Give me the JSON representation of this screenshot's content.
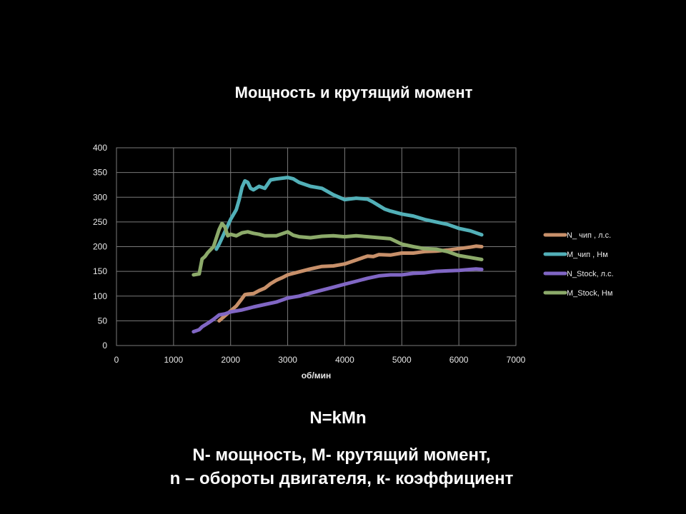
{
  "title": "Мощность и крутящий момент",
  "formula": "N=kMn",
  "description_line1": "N- мощность, M- крутящий момент,",
  "description_line2": "n – обороты двигателя, к- коэффициент",
  "chart_data": {
    "type": "line",
    "title": "",
    "xlabel": "об/мин",
    "ylabel": "",
    "xlim": [
      0,
      7000
    ],
    "ylim": [
      0,
      400
    ],
    "xticks": [
      0,
      1000,
      2000,
      3000,
      4000,
      5000,
      6000,
      7000
    ],
    "yticks": [
      0,
      50,
      100,
      150,
      200,
      250,
      300,
      350,
      400
    ],
    "grid": true,
    "legend_position": "right",
    "series": [
      {
        "name": "N_ чип , л.с.",
        "color": "#c8906a",
        "x": [
          1800,
          1900,
          2000,
          2100,
          2200,
          2250,
          2300,
          2400,
          2500,
          2600,
          2700,
          2800,
          2900,
          3000,
          3200,
          3400,
          3600,
          3800,
          4000,
          4200,
          4400,
          4500,
          4600,
          4800,
          5000,
          5200,
          5400,
          5600,
          5800,
          6000,
          6200,
          6300,
          6400
        ],
        "y": [
          50,
          60,
          70,
          80,
          95,
          103,
          104,
          105,
          111,
          116,
          125,
          132,
          137,
          143,
          149,
          155,
          160,
          161,
          165,
          173,
          181,
          180,
          184,
          183,
          187,
          187,
          190,
          191,
          193,
          196,
          199,
          201,
          200
        ]
      },
      {
        "name": "M_чип , Нм",
        "color": "#52b0b8",
        "x": [
          1750,
          1800,
          1900,
          2000,
          2100,
          2150,
          2200,
          2250,
          2300,
          2350,
          2400,
          2500,
          2600,
          2700,
          2800,
          3000,
          3100,
          3200,
          3400,
          3600,
          3800,
          4000,
          4200,
          4400,
          4500,
          4700,
          4800,
          5000,
          5200,
          5400,
          5600,
          5800,
          6000,
          6200,
          6400
        ],
        "y": [
          195,
          205,
          230,
          255,
          275,
          295,
          320,
          333,
          330,
          318,
          315,
          322,
          318,
          335,
          337,
          340,
          337,
          330,
          322,
          318,
          305,
          295,
          298,
          296,
          290,
          276,
          272,
          266,
          262,
          255,
          250,
          245,
          237,
          232,
          224
        ]
      },
      {
        "name": "N_Stock, л.с.",
        "color": "#8066c4",
        "x": [
          1350,
          1450,
          1500,
          1600,
          1700,
          1800,
          1900,
          2000,
          2100,
          2200,
          2300,
          2400,
          2600,
          2800,
          3000,
          3200,
          3400,
          3600,
          3800,
          4000,
          4200,
          4400,
          4600,
          4800,
          5000,
          5200,
          5400,
          5600,
          5800,
          6000,
          6200,
          6300,
          6400
        ],
        "y": [
          28,
          32,
          38,
          45,
          53,
          62,
          64,
          68,
          70,
          72,
          75,
          78,
          83,
          88,
          96,
          100,
          106,
          112,
          118,
          124,
          130,
          136,
          141,
          143,
          143,
          146,
          147,
          150,
          151,
          152,
          154,
          155,
          154
        ]
      },
      {
        "name": "M_Stock, Нм",
        "color": "#8caa6a",
        "x": [
          1350,
          1450,
          1500,
          1550,
          1600,
          1700,
          1800,
          1850,
          1900,
          1950,
          2000,
          2100,
          2200,
          2300,
          2400,
          2500,
          2600,
          2800,
          3000,
          3100,
          3200,
          3400,
          3600,
          3800,
          4000,
          4200,
          4400,
          4600,
          4800,
          5000,
          5200,
          5400,
          5600,
          5800,
          6000,
          6200,
          6400
        ],
        "y": [
          143,
          145,
          175,
          180,
          188,
          200,
          235,
          247,
          240,
          222,
          225,
          222,
          228,
          230,
          227,
          225,
          222,
          222,
          230,
          223,
          220,
          218,
          221,
          222,
          220,
          222,
          220,
          218,
          216,
          205,
          200,
          196,
          195,
          190,
          182,
          178,
          174
        ]
      }
    ]
  }
}
